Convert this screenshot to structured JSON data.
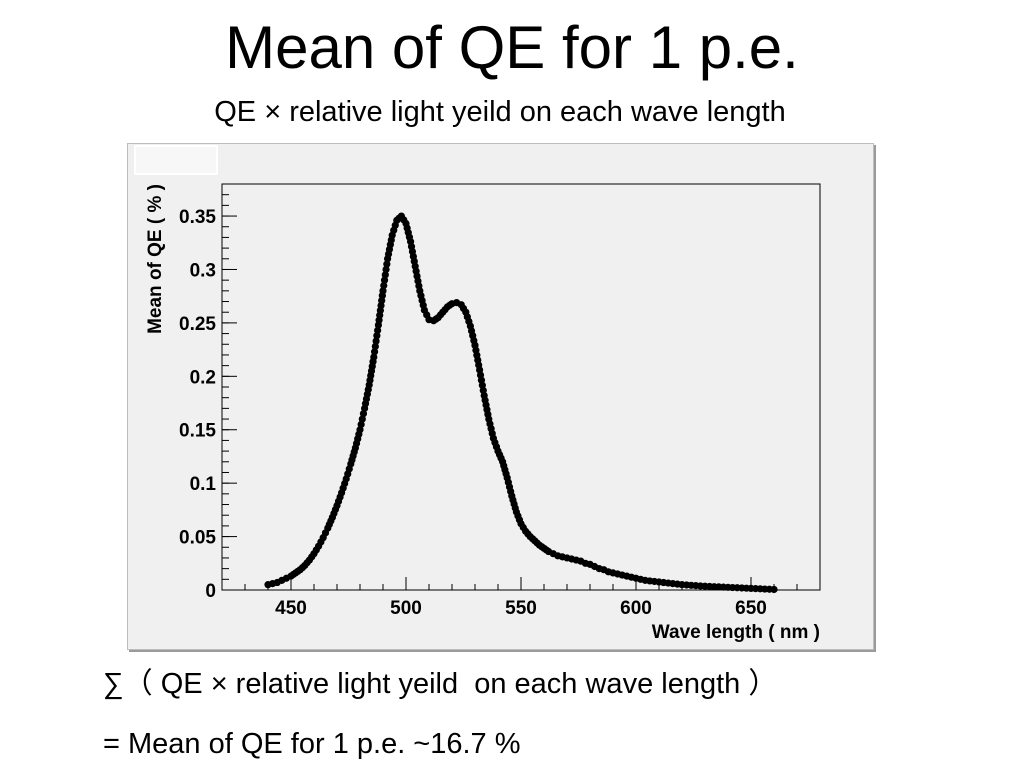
{
  "slide": {
    "title": "Mean of QE for 1 p.e.",
    "subtitle": "QE × relative light yeild  on each wave length",
    "sum_line": "∑（ QE × relative light yeild  on each wave length ）",
    "result_line": "= Mean of QE for 1 p.e. ~16.7 %"
  },
  "chart_data": {
    "type": "scatter",
    "title": "",
    "xlabel": "Wave length ( nm )",
    "ylabel": "Mean of QE ( % )",
    "xlim": [
      420,
      680
    ],
    "ylim": [
      0,
      0.38
    ],
    "x_ticks": [
      450,
      500,
      550,
      600,
      650
    ],
    "x_tick_labels": [
      "450",
      "500",
      "550",
      "600",
      "650"
    ],
    "y_ticks": [
      0,
      0.05,
      0.1,
      0.15,
      0.2,
      0.25,
      0.3,
      0.35
    ],
    "y_tick_labels": [
      "0",
      "0.05",
      "0.1",
      "0.15",
      "0.2",
      "0.25",
      "0.3",
      "0.35"
    ],
    "marker_color": "#000000",
    "grid": false,
    "series": [
      {
        "name": "",
        "x_step": 2,
        "x": [
          440,
          442,
          444,
          446,
          448,
          450,
          452,
          454,
          456,
          458,
          460,
          462,
          464,
          466,
          468,
          470,
          472,
          474,
          476,
          478,
          480,
          482,
          484,
          486,
          488,
          490,
          492,
          494,
          496,
          498,
          500,
          502,
          504,
          506,
          508,
          510,
          512,
          514,
          516,
          518,
          520,
          522,
          524,
          526,
          528,
          530,
          532,
          534,
          536,
          538,
          540,
          542,
          544,
          546,
          548,
          550,
          552,
          554,
          556,
          558,
          560,
          562,
          564,
          566,
          568,
          570,
          572,
          574,
          576,
          578,
          580,
          582,
          584,
          586,
          588,
          590,
          592,
          594,
          596,
          598,
          600,
          602,
          604,
          606,
          608,
          610,
          612,
          614,
          616,
          618,
          620,
          622,
          624,
          626,
          628,
          630,
          632,
          634,
          636,
          638,
          640,
          642,
          644,
          646,
          648,
          650,
          652,
          654,
          656,
          658,
          660
        ],
        "y": [
          0.005,
          0.006,
          0.007,
          0.009,
          0.011,
          0.013,
          0.016,
          0.019,
          0.023,
          0.028,
          0.034,
          0.041,
          0.049,
          0.058,
          0.068,
          0.079,
          0.091,
          0.104,
          0.118,
          0.133,
          0.15,
          0.17,
          0.192,
          0.218,
          0.248,
          0.28,
          0.31,
          0.332,
          0.346,
          0.35,
          0.343,
          0.326,
          0.303,
          0.28,
          0.262,
          0.253,
          0.252,
          0.255,
          0.26,
          0.265,
          0.268,
          0.269,
          0.267,
          0.26,
          0.247,
          0.229,
          0.206,
          0.182,
          0.16,
          0.142,
          0.13,
          0.12,
          0.105,
          0.088,
          0.073,
          0.062,
          0.055,
          0.05,
          0.046,
          0.042,
          0.039,
          0.036,
          0.034,
          0.032,
          0.031,
          0.03,
          0.029,
          0.028,
          0.027,
          0.025,
          0.024,
          0.022,
          0.02,
          0.019,
          0.017,
          0.016,
          0.015,
          0.014,
          0.013,
          0.012,
          0.011,
          0.01,
          0.009,
          0.0085,
          0.008,
          0.0075,
          0.007,
          0.0065,
          0.006,
          0.0055,
          0.005,
          0.0047,
          0.0044,
          0.0041,
          0.0038,
          0.0035,
          0.0033,
          0.0031,
          0.0029,
          0.0027,
          0.0025,
          0.0023,
          0.0021,
          0.0019,
          0.0017,
          0.0015,
          0.0013,
          0.0011,
          0.0009,
          0.0007,
          0.0005
        ]
      }
    ]
  }
}
